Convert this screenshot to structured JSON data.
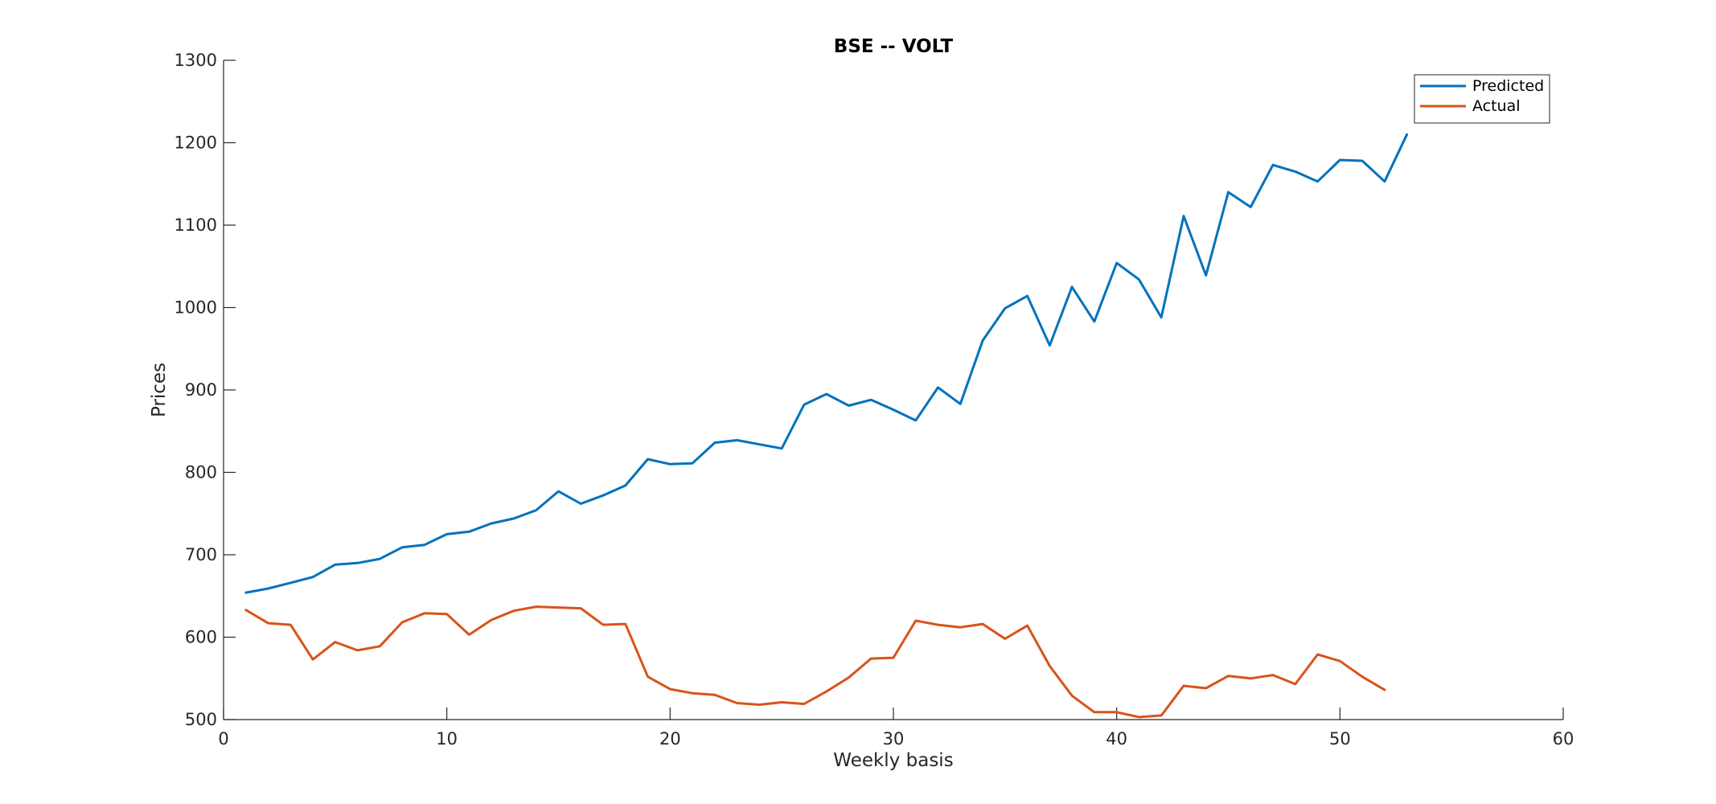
{
  "chart_data": {
    "type": "line",
    "title": "BSE -- VOLT",
    "xlabel": "Weekly basis",
    "ylabel": "Prices",
    "xlim": [
      0,
      60
    ],
    "ylim": [
      500,
      1300
    ],
    "xticks": [
      0,
      10,
      20,
      30,
      40,
      50,
      60
    ],
    "yticks": [
      500,
      600,
      700,
      800,
      900,
      1000,
      1100,
      1200,
      1300
    ],
    "grid": false,
    "legend_position": "top-right",
    "series": [
      {
        "name": "Predicted",
        "color": "#0072BD",
        "x": [
          1,
          2,
          3,
          4,
          5,
          6,
          7,
          8,
          9,
          10,
          11,
          12,
          13,
          14,
          15,
          16,
          17,
          18,
          19,
          20,
          21,
          22,
          23,
          24,
          25,
          26,
          27,
          28,
          29,
          30,
          31,
          32,
          33,
          34,
          35,
          36,
          37,
          38,
          39,
          40,
          41,
          42,
          43,
          44,
          45,
          46,
          47,
          48,
          49,
          50,
          51,
          52,
          53
        ],
        "values": [
          654,
          659,
          666,
          673,
          688,
          690,
          695,
          709,
          712,
          725,
          728,
          738,
          744,
          754,
          777,
          762,
          772,
          784,
          816,
          810,
          811,
          836,
          839,
          834,
          829,
          882,
          895,
          881,
          888,
          876,
          863,
          903,
          883,
          960,
          999,
          1014,
          954,
          1025,
          983,
          1054,
          1034,
          988,
          1111,
          1039,
          1140,
          1122,
          1173,
          1165,
          1153,
          1179,
          1178,
          1153,
          1210
        ]
      },
      {
        "name": "Actual",
        "color": "#D95319",
        "x": [
          1,
          2,
          3,
          4,
          5,
          6,
          7,
          8,
          9,
          10,
          11,
          12,
          13,
          14,
          15,
          16,
          17,
          18,
          19,
          20,
          21,
          22,
          23,
          24,
          25,
          26,
          27,
          28,
          29,
          30,
          31,
          32,
          33,
          34,
          35,
          36,
          37,
          38,
          39,
          40,
          41,
          42,
          43,
          44,
          45,
          46,
          47,
          48,
          49,
          50,
          51,
          52
        ],
        "values": [
          633,
          617,
          615,
          573,
          594,
          584,
          589,
          618,
          629,
          628,
          603,
          621,
          632,
          637,
          636,
          635,
          615,
          616,
          552,
          537,
          532,
          530,
          520,
          518,
          521,
          519,
          534,
          551,
          574,
          575,
          620,
          615,
          612,
          616,
          598,
          614,
          565,
          529,
          509,
          509,
          503,
          505,
          541,
          538,
          553,
          550,
          554,
          543,
          579,
          571,
          552,
          536
        ]
      }
    ]
  }
}
